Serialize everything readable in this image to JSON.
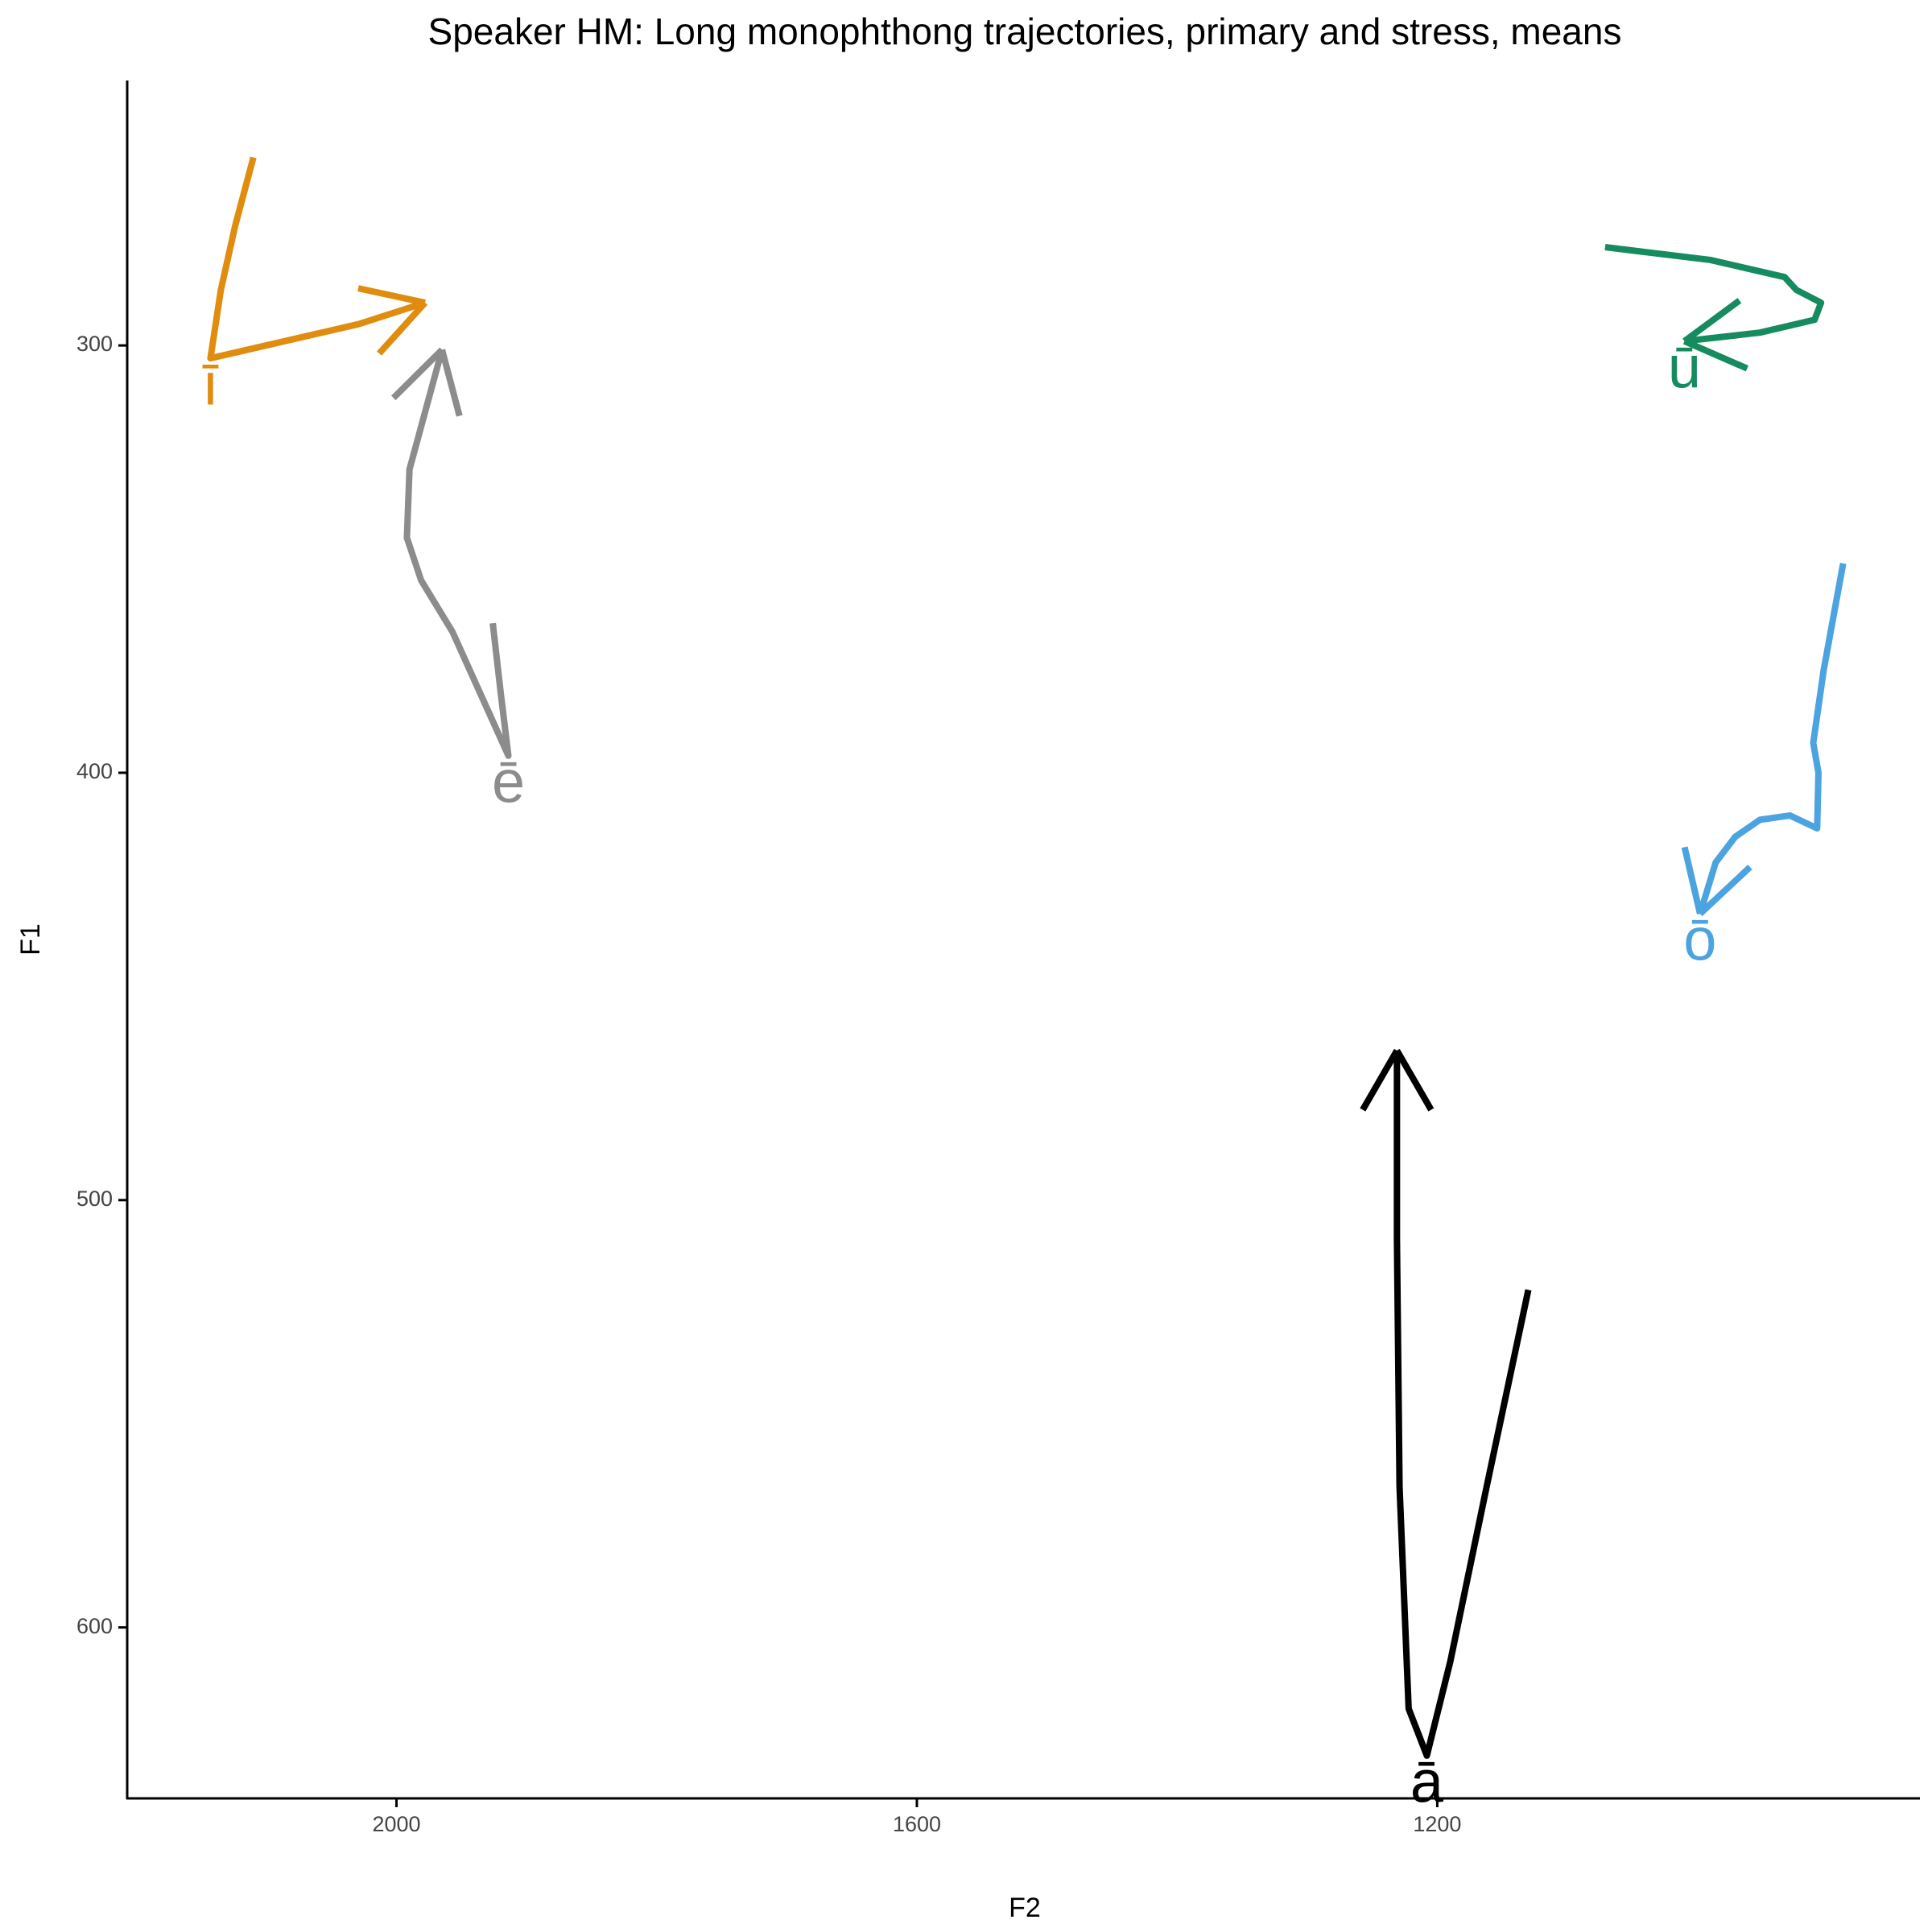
{
  "chart_data": {
    "type": "line",
    "title": "Speaker HM: Long monophthong trajectories, primary and stress, means",
    "x_label": "F2",
    "y_label": "F1",
    "xlim": [
      829,
      2207
    ],
    "ylim": [
      238,
      640
    ],
    "xreverse": true,
    "yreverse": true,
    "xticks": [
      2000,
      1600,
      1200
    ],
    "yticks": [
      300,
      400,
      500,
      600
    ],
    "series": [
      {
        "name": "ī",
        "color": "#df8c0f",
        "x": [
          2110,
          2124,
          2135,
          2143,
          2086,
          2029,
          1978
        ],
        "values": [
          256,
          272,
          287,
          303,
          299,
          295,
          290
        ]
      },
      {
        "name": "ē",
        "color": "#8c8c8c",
        "x": [
          1926,
          1920,
          1914,
          1957,
          1981,
          1992,
          1990,
          1965
        ],
        "values": [
          365,
          381,
          396,
          367,
          355,
          345,
          329,
          301
        ]
      },
      {
        "name": "ā",
        "color": "#000000",
        "x": [
          1130,
          1162,
          1190,
          1208,
          1222,
          1229,
          1231,
          1231
        ],
        "values": [
          521,
          567,
          608,
          630,
          619,
          567,
          509,
          465
        ]
      },
      {
        "name": "ū",
        "color": "#168b5f",
        "x": [
          1071,
          990,
          933,
          924,
          905,
          910,
          952,
          1010
        ],
        "values": [
          277,
          280,
          284,
          287,
          290,
          294,
          297,
          299
        ]
      },
      {
        "name": "ō",
        "color": "#4ba3df",
        "x": [
          888,
          903,
          911,
          907,
          908,
          929,
          952,
          971,
          986,
          998
        ],
        "values": [
          351,
          376,
          393,
          400,
          413,
          410,
          411,
          415,
          421,
          433
        ]
      }
    ]
  }
}
